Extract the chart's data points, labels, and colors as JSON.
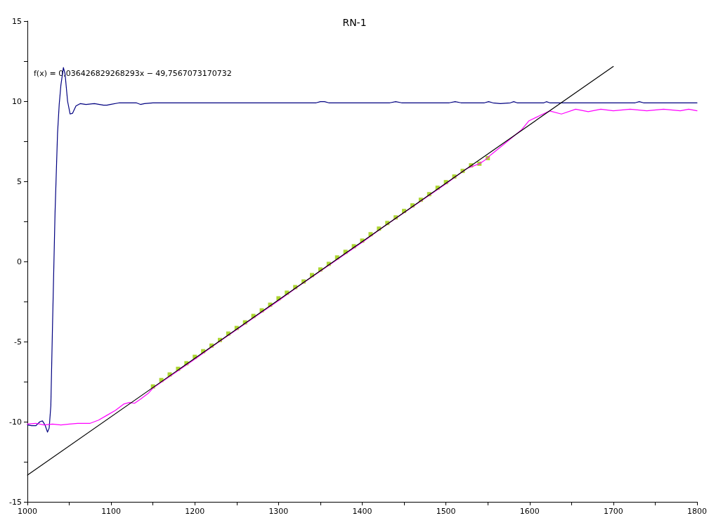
{
  "chart_data": {
    "type": "line",
    "title": "RN-1",
    "annotations": [
      "f(x) = 0,036426829268293x − 49,7567073170732"
    ],
    "xlim": [
      1000,
      1800
    ],
    "xticks": [
      1000,
      {
        "value": 1050,
        "label": null
      },
      1100,
      {
        "value": 1150,
        "label": null
      },
      1200,
      {
        "value": 1250,
        "label": null
      },
      1300,
      {
        "value": 1350,
        "label": null
      },
      1400,
      {
        "value": 1450,
        "label": null
      },
      1500,
      {
        "value": 1550,
        "label": null
      },
      1600,
      {
        "value": 1650,
        "label": null
      },
      1700,
      {
        "value": 1750,
        "label": null
      },
      1800
    ],
    "ylim": [
      -15,
      15
    ],
    "yticks": [
      -15,
      {
        "value": -12.5,
        "label": null
      },
      -10,
      {
        "value": -7.5,
        "label": null
      },
      -5,
      {
        "value": -2.5,
        "label": null
      },
      0,
      {
        "value": 2.5,
        "label": null
      },
      5,
      {
        "value": 7.5,
        "label": null
      },
      10,
      {
        "value": 12.5,
        "label": null
      },
      15
    ],
    "grid": false,
    "marker": "none",
    "line_style": "solid",
    "series": [
      {
        "color": "#000080",
        "x": [
          1000,
          1005,
          1010,
          1015,
          1018,
          1021,
          1024,
          1026,
          1028,
          1030,
          1033,
          1036,
          1038,
          1040,
          1043,
          1045,
          1048,
          1051,
          1054,
          1058,
          1063,
          1070,
          1080,
          1091,
          1095,
          1099,
          1110,
          1130,
          1135,
          1140,
          1150,
          1345,
          1350,
          1355,
          1360,
          1433,
          1440,
          1447,
          1504,
          1511,
          1518,
          1546,
          1551,
          1556,
          1565,
          1577,
          1581,
          1585,
          1617,
          1620,
          1624,
          1726,
          1731,
          1736,
          1800
        ],
        "values": [
          -10.2,
          -10.25,
          -10.25,
          -10.0,
          -9.95,
          -10.2,
          -10.65,
          -10.4,
          -9.0,
          -4.0,
          3.0,
          8.0,
          9.8,
          11.0,
          12.1,
          11.7,
          10.0,
          9.2,
          9.25,
          9.7,
          9.85,
          9.8,
          9.85,
          9.75,
          9.75,
          9.8,
          9.9,
          9.9,
          9.8,
          9.85,
          9.9,
          9.9,
          9.97,
          9.97,
          9.9,
          9.9,
          9.97,
          9.9,
          9.9,
          9.97,
          9.9,
          9.9,
          9.97,
          9.9,
          9.85,
          9.9,
          9.97,
          9.9,
          9.9,
          9.97,
          9.9,
          9.9,
          9.97,
          9.9,
          9.9
        ]
      },
      {
        "color": "#ff00ff",
        "x": [
          1000,
          1010,
          1020,
          1030,
          1040,
          1050,
          1060,
          1075,
          1085,
          1095,
          1105,
          1115,
          1122,
          1128,
          1135,
          1145,
          1150,
          1175,
          1200,
          1225,
          1250,
          1275,
          1300,
          1325,
          1350,
          1375,
          1400,
          1425,
          1450,
          1475,
          1500,
          1525,
          1540,
          1546,
          1554,
          1570,
          1590,
          1599,
          1612,
          1624,
          1638,
          1655,
          1670,
          1685,
          1700,
          1720,
          1740,
          1760,
          1780,
          1790,
          1800
        ],
        "values": [
          -10.15,
          -10.1,
          -10.2,
          -10.15,
          -10.2,
          -10.15,
          -10.1,
          -10.1,
          -9.9,
          -9.6,
          -9.3,
          -8.9,
          -8.8,
          -8.85,
          -8.6,
          -8.2,
          -7.9,
          -7.0,
          -6.1,
          -5.15,
          -4.25,
          -3.35,
          -2.45,
          -1.5,
          -0.6,
          0.3,
          1.2,
          2.15,
          3.05,
          3.95,
          4.85,
          5.8,
          6.1,
          6.3,
          6.67,
          7.35,
          8.2,
          8.77,
          9.1,
          9.39,
          9.2,
          9.5,
          9.35,
          9.5,
          9.4,
          9.5,
          9.4,
          9.5,
          9.4,
          9.5,
          9.4
        ]
      },
      {
        "type": "scatter",
        "color": "#99cc00",
        "marker": "square",
        "x": [
          1150,
          1160,
          1170,
          1180,
          1190,
          1200,
          1210,
          1220,
          1230,
          1240,
          1250,
          1260,
          1270,
          1280,
          1290,
          1300,
          1310,
          1320,
          1330,
          1340,
          1350,
          1360,
          1370,
          1380,
          1390,
          1400,
          1410,
          1420,
          1430,
          1440,
          1450,
          1460,
          1470,
          1480,
          1490,
          1500,
          1510,
          1520,
          1530,
          1540,
          1550
        ],
        "values": [
          -7.8,
          -7.4,
          -7.05,
          -6.7,
          -6.35,
          -5.95,
          -5.6,
          -5.25,
          -4.9,
          -4.5,
          -4.15,
          -3.8,
          -3.4,
          -3.05,
          -2.7,
          -2.3,
          -1.95,
          -1.6,
          -1.25,
          -0.85,
          -0.5,
          -0.15,
          0.25,
          0.6,
          0.95,
          1.3,
          1.7,
          2.05,
          2.4,
          2.75,
          3.15,
          3.5,
          3.85,
          4.2,
          4.6,
          4.95,
          5.3,
          5.65,
          6.0,
          6.1,
          6.45
        ]
      },
      {
        "color": "#000000",
        "x": [
          1000,
          1700
        ],
        "values": [
          -13.33,
          12.17
        ]
      }
    ]
  }
}
